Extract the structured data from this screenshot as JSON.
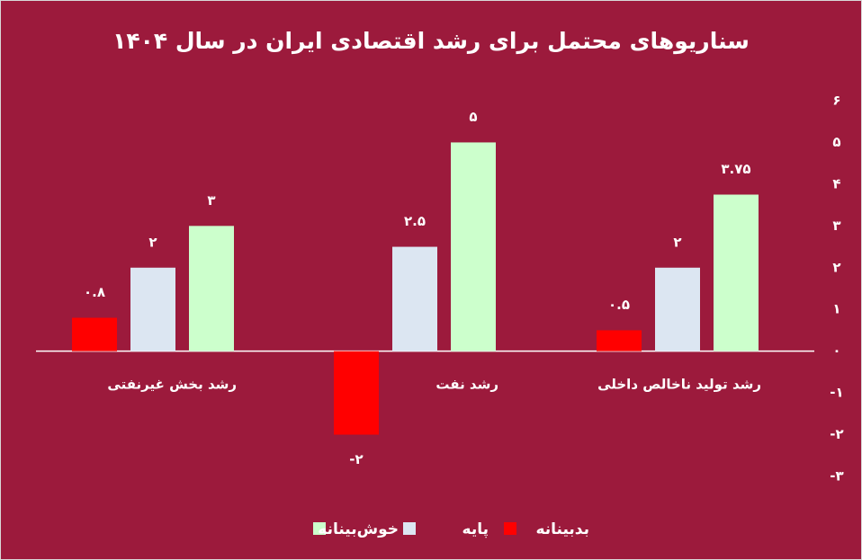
{
  "chart_data": {
    "type": "bar",
    "title": "سناریوهای محتمل برای رشد اقتصادی ایران در سال ۱۴۰۴",
    "categories": [
      "رشد تولید ناخالص داخلی",
      "رشد نفت",
      "رشد بخش غیرنفتی"
    ],
    "series": [
      {
        "name": "بدبینانه",
        "color": "#ff0000",
        "values": [
          0.5,
          -2,
          0.8
        ],
        "value_labels": [
          "۰.۵",
          "-۲",
          "۰.۸"
        ]
      },
      {
        "name": "پایه",
        "color": "#dce6f2",
        "values": [
          2,
          2.5,
          2
        ],
        "value_labels": [
          "۲",
          "۲.۵",
          "۲"
        ]
      },
      {
        "name": "خوش‌بینانه",
        "color": "#ccffcc",
        "values": [
          3.75,
          5,
          3
        ],
        "value_labels": [
          "۳.۷۵",
          "۵",
          "۳"
        ]
      }
    ],
    "ylim": [
      -3,
      6
    ],
    "yticks": [
      {
        "value": -3,
        "label": "-۳"
      },
      {
        "value": -2,
        "label": "-۲"
      },
      {
        "value": -1,
        "label": "-۱"
      },
      {
        "value": 0,
        "label": "۰"
      },
      {
        "value": 1,
        "label": "۱"
      },
      {
        "value": 2,
        "label": "۲"
      },
      {
        "value": 3,
        "label": "۳"
      },
      {
        "value": 4,
        "label": "۴"
      },
      {
        "value": 5,
        "label": "۵"
      },
      {
        "value": 6,
        "label": "۶"
      }
    ],
    "grid": false,
    "legend": "bottom"
  }
}
